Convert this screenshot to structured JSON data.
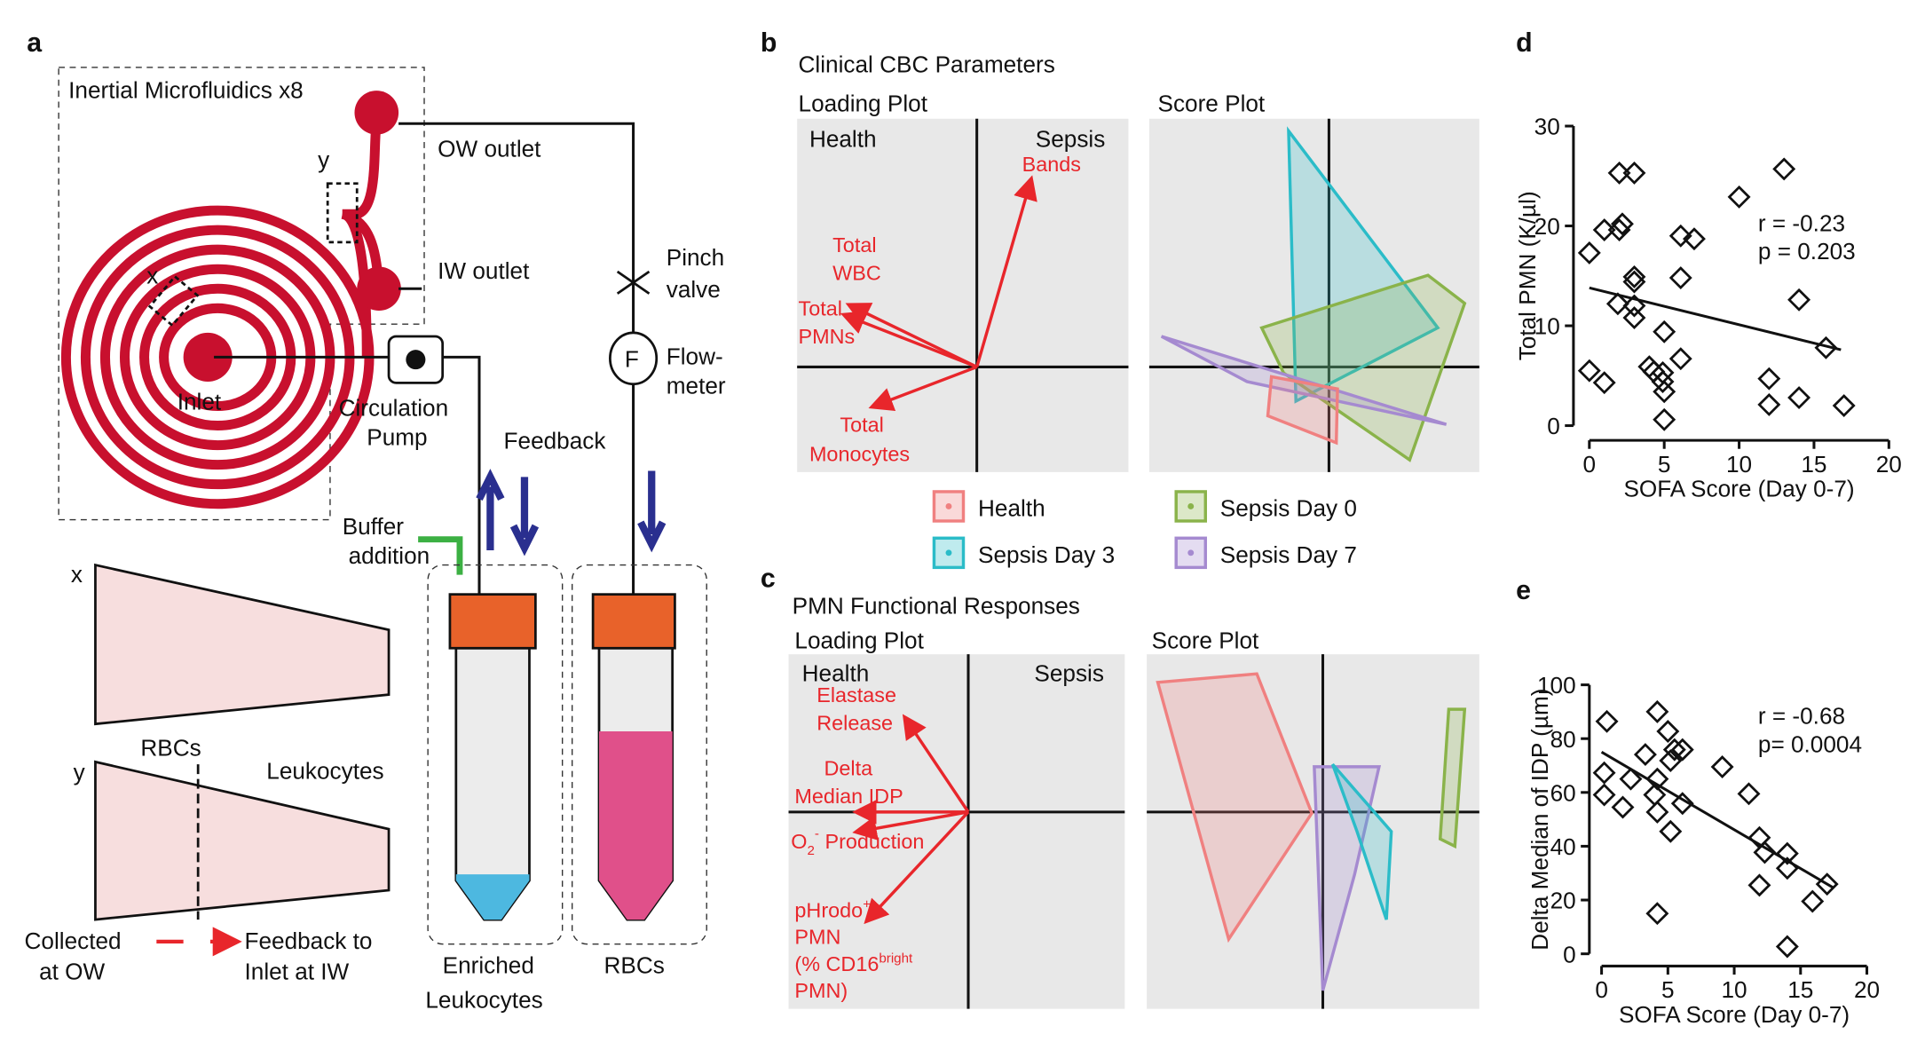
{
  "panels": {
    "a": {
      "label": "a",
      "box_title": "Inertial Microfluidics x8",
      "ow_outlet": "OW outlet",
      "iw_outlet": "IW outlet",
      "y_mark": "y",
      "x_mark": "x",
      "inlet": "Inlet",
      "pump": [
        "Circulation",
        "Pump"
      ],
      "pinch": [
        "Pinch",
        "valve"
      ],
      "flow_symbol": "F",
      "flow": [
        "Flow-",
        "meter"
      ],
      "feedback": "Feedback",
      "buffer": [
        "Buffer",
        "addition"
      ],
      "section_x": "x",
      "section_y": "y",
      "rbcs_section": "RBCs",
      "leukocytes": "Leukocytes",
      "collected": [
        "Collected",
        "at OW"
      ],
      "feedback_iw": [
        "Feedback to",
        "Inlet at IW"
      ],
      "tube_left": [
        "Enriched",
        "Leukocytes"
      ],
      "tube_right": "RBCs"
    },
    "b": {
      "label": "b",
      "title": "Clinical CBC Parameters",
      "loading": "Loading Plot",
      "score": "Score Plot",
      "health": "Health",
      "sepsis": "Sepsis",
      "bands": "Bands",
      "wbc": [
        "Total",
        "WBC"
      ],
      "pmns": [
        "Total",
        "PMNs"
      ],
      "monocytes": [
        "Total",
        "Monocytes"
      ],
      "legend": [
        {
          "name": "Health",
          "color": "#f08080"
        },
        {
          "name": "Sepsis Day 0",
          "color": "#8ab34a"
        },
        {
          "name": "Sepsis Day 3",
          "color": "#2bbcc8"
        },
        {
          "name": "Sepsis Day 7",
          "color": "#a58ad0"
        }
      ]
    },
    "c": {
      "label": "c",
      "title": "PMN Functional Responses",
      "loading": "Loading Plot",
      "score": "Score Plot",
      "health": "Health",
      "sepsis": "Sepsis",
      "elastase": [
        "Elastase",
        "Release"
      ],
      "idp": [
        "Delta",
        "Median IDP"
      ],
      "o2": {
        "o": "O",
        "sub": "2",
        "sup": "-",
        "rest": " Production"
      },
      "phrodo": {
        "main": "pHrodo",
        "sup": "+",
        "l2": "PMN",
        "l3a": "(% CD16",
        "l3sup": "bright",
        "l4": "PMN)"
      }
    }
  },
  "chart_data": [
    {
      "type": "scatter",
      "label": "d",
      "xlabel": "SOFA Score (Day 0-7)",
      "ylabel": "Total PMN (K/µl)",
      "xlim": [
        0,
        20
      ],
      "ylim": [
        0,
        30
      ],
      "xticks": [
        0,
        5,
        10,
        15,
        20
      ],
      "yticks": [
        0,
        10,
        20,
        30
      ],
      "annotations": [
        "r = -0.23",
        "p = 0.203"
      ],
      "x": [
        0,
        0,
        1,
        1,
        2,
        3,
        2,
        2.2,
        1.9,
        3,
        3,
        3,
        3,
        4,
        4.3,
        4.9,
        4.9,
        5,
        5,
        5,
        6.1,
        6.1,
        6.1,
        7,
        10,
        12,
        12,
        13,
        14,
        14,
        15.8,
        17
      ],
      "values": [
        17.3,
        5.5,
        4.3,
        19.6,
        25.3,
        25.3,
        19.6,
        20.2,
        12.2,
        14.4,
        14.9,
        12,
        10.8,
        5.9,
        5.4,
        5.3,
        4.4,
        3.4,
        0.6,
        9.4,
        6.7,
        14.8,
        19,
        18.7,
        22.9,
        4.7,
        2.1,
        25.7,
        12.6,
        2.8,
        7.8,
        2
      ],
      "fit": {
        "x": [
          0,
          16.8
        ],
        "values": [
          13.8,
          7.6
        ]
      }
    },
    {
      "type": "scatter",
      "label": "e",
      "xlabel": "SOFA Score (Day 0-7)",
      "ylabel": "Delta Median of IDP (µm)",
      "xlim": [
        0,
        20
      ],
      "ylim": [
        0,
        100
      ],
      "xticks": [
        0,
        5,
        10,
        15,
        20
      ],
      "yticks": [
        0,
        20,
        40,
        60,
        80,
        100
      ],
      "annotations": [
        "r = -0.68",
        "p= 0.0004"
      ],
      "x": [
        0.4,
        0.2,
        0.2,
        1.6,
        2.2,
        3.3,
        4.2,
        5,
        5.5,
        6.1,
        5.2,
        4.2,
        4,
        4.2,
        5.2,
        6.1,
        4.2,
        9.1,
        11.1,
        11.9,
        12.3,
        11.9,
        14,
        14,
        14,
        15.9,
        17
      ],
      "values": [
        86.4,
        67.3,
        59.1,
        54.5,
        65,
        74.1,
        90,
        82.7,
        75.9,
        75.9,
        71.8,
        65,
        59.1,
        52.7,
        45.5,
        55.9,
        15,
        69.5,
        59.5,
        43.2,
        37.7,
        25.5,
        37.3,
        31.8,
        2.7,
        19.5,
        25.9
      ],
      "fit": {
        "x": [
          0,
          17.5
        ],
        "values": [
          75,
          24.5
        ]
      }
    }
  ]
}
